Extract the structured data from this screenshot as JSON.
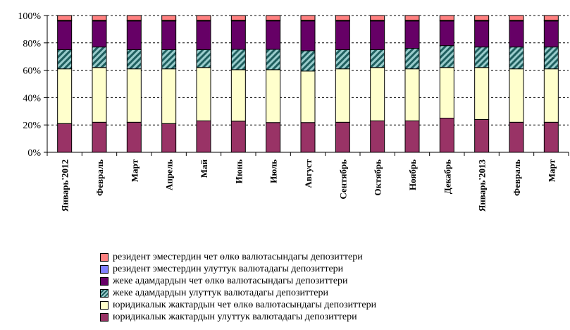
{
  "chart_data": {
    "type": "bar",
    "stacked": "percent",
    "title": "",
    "xlabel": "",
    "ylabel": "",
    "ylim": [
      0,
      100
    ],
    "y_ticks": [
      "0%",
      "20%",
      "40%",
      "60%",
      "80%",
      "100%"
    ],
    "grid": "horizontal dashed",
    "legend_position": "bottom",
    "categories": [
      "Январь'2012",
      "Февраль",
      "Март",
      "Апрель",
      "Май",
      "Июнь",
      "Июль",
      "Август",
      "Сентябрь",
      "Октябрь",
      "Ноябрь",
      "Декабрь",
      "Январь'2013",
      "Февраль",
      "Март"
    ],
    "series": [
      {
        "name": "юридикалык жактардын улуттук валютадагы депозиттери",
        "color": "#993366",
        "pattern": "solid",
        "values": [
          21,
          22,
          22,
          21,
          23,
          23,
          22,
          22,
          22,
          23,
          23,
          25,
          24,
          22,
          22
        ]
      },
      {
        "name": "юридикалык жактардын чет өлкө валютасындагы депозиттери",
        "color": "#ffffcc",
        "pattern": "solid",
        "values": [
          40,
          40,
          39,
          40,
          39,
          38,
          39,
          38,
          39,
          39,
          38,
          37,
          38,
          39,
          39
        ]
      },
      {
        "name": "жеке адамдардын улуттук валютадагы депозиттери",
        "color": "#99cccc",
        "pattern": "hatched",
        "values": [
          14,
          15,
          14,
          14,
          13,
          15,
          15,
          15,
          14,
          13,
          15,
          16,
          15,
          16,
          16
        ]
      },
      {
        "name": "жеке адамдардын чет өлкө валютасындагы депозиттери",
        "color": "#660066",
        "pattern": "solid",
        "values": [
          21,
          19,
          21,
          21,
          21,
          21,
          21,
          22,
          21,
          21,
          20,
          18,
          19,
          19,
          19
        ]
      },
      {
        "name": "резидент эместердин улуттук валютадагы депозиттери",
        "color": "#8080ff",
        "pattern": "solid",
        "values": [
          0.5,
          0.5,
          0.5,
          0.5,
          0.5,
          0.5,
          0.5,
          0.5,
          0.5,
          0.5,
          0.5,
          0.5,
          0.5,
          0.5,
          0.5
        ]
      },
      {
        "name": "резидент эместердин чет өлкө валютасындагы депозиттери",
        "color": "#ff8080",
        "pattern": "solid",
        "values": [
          3.5,
          3.5,
          3.5,
          3.5,
          3.5,
          3.5,
          3.5,
          3.5,
          3.5,
          3.5,
          3.5,
          3.5,
          3.5,
          3.5,
          3.5
        ]
      }
    ],
    "legend_order": [
      5,
      4,
      3,
      2,
      1,
      0
    ]
  }
}
